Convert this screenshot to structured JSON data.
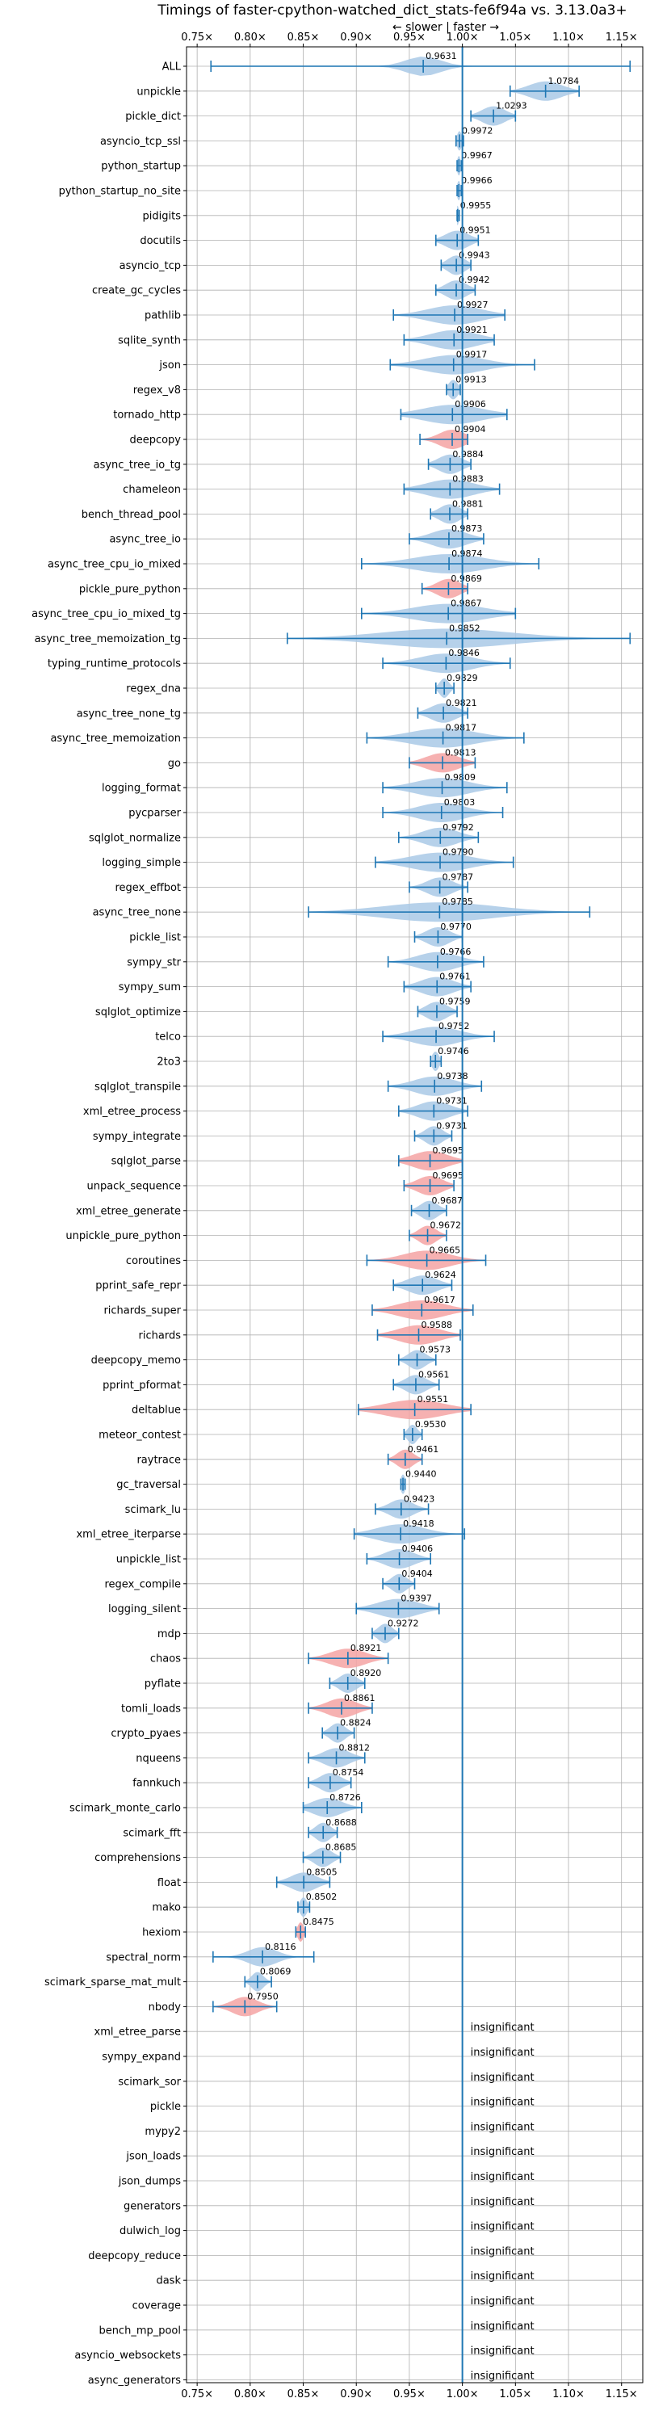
{
  "chart_data": {
    "type": "violin",
    "title": "Timings of faster-cpython-watched_dict_stats-fe6f94a vs. 3.13.0a3+",
    "direction_label": "← slower | faster →",
    "xlim": [
      0.74,
      1.17
    ],
    "xticks": [
      0.75,
      0.8,
      0.85,
      0.9,
      0.95,
      1.0,
      1.05,
      1.1,
      1.15
    ],
    "xtick_labels": [
      "0.75×",
      "0.80×",
      "0.85×",
      "0.90×",
      "0.95×",
      "1.00×",
      "1.05×",
      "1.10×",
      "1.15×"
    ],
    "reference_line": 1.0,
    "grid": true,
    "colors": {
      "faster": "#a9c9e6",
      "slower": "#f4a3a3",
      "line": "#1f77b4",
      "grid": "#b0b0b0"
    },
    "insignificant_label": "insignificant",
    "benchmarks": [
      {
        "name": "ALL",
        "value": 0.9631,
        "label": "0.9631",
        "min": 0.763,
        "max": 1.158,
        "spread": 0.03,
        "color": "faster"
      },
      {
        "name": "unpickle",
        "value": 1.0784,
        "label": "1.0784",
        "min": 1.045,
        "max": 1.11,
        "spread": 0.028,
        "color": "faster"
      },
      {
        "name": "pickle_dict",
        "value": 1.0293,
        "label": "1.0293",
        "min": 1.008,
        "max": 1.05,
        "spread": 0.02,
        "color": "faster"
      },
      {
        "name": "asyncio_tcp_ssl",
        "value": 0.9972,
        "label": "0.9972",
        "min": 0.994,
        "max": 1.001,
        "spread": 0.004,
        "color": "faster"
      },
      {
        "name": "python_startup",
        "value": 0.9967,
        "label": "0.9967",
        "min": 0.995,
        "max": 0.999,
        "spread": 0.003,
        "color": "faster"
      },
      {
        "name": "python_startup_no_site",
        "value": 0.9966,
        "label": "0.9966",
        "min": 0.995,
        "max": 0.999,
        "spread": 0.003,
        "color": "faster"
      },
      {
        "name": "pidigits",
        "value": 0.9955,
        "label": "0.9955",
        "min": 0.995,
        "max": 0.997,
        "spread": 0.002,
        "color": "faster"
      },
      {
        "name": "docutils",
        "value": 0.9951,
        "label": "0.9951",
        "min": 0.975,
        "max": 1.015,
        "spread": 0.02,
        "color": "faster"
      },
      {
        "name": "asyncio_tcp",
        "value": 0.9943,
        "label": "0.9943",
        "min": 0.98,
        "max": 1.008,
        "spread": 0.015,
        "color": "faster"
      },
      {
        "name": "create_gc_cycles",
        "value": 0.9942,
        "label": "0.9942",
        "min": 0.975,
        "max": 1.012,
        "spread": 0.018,
        "color": "faster"
      },
      {
        "name": "pathlib",
        "value": 0.9927,
        "label": "0.9927",
        "min": 0.935,
        "max": 1.04,
        "spread": 0.045,
        "color": "faster"
      },
      {
        "name": "sqlite_synth",
        "value": 0.9921,
        "label": "0.9921",
        "min": 0.945,
        "max": 1.03,
        "spread": 0.04,
        "color": "faster"
      },
      {
        "name": "json",
        "value": 0.9917,
        "label": "0.9917",
        "min": 0.932,
        "max": 1.068,
        "spread": 0.05,
        "color": "faster"
      },
      {
        "name": "regex_v8",
        "value": 0.9913,
        "label": "0.9913",
        "min": 0.985,
        "max": 0.998,
        "spread": 0.008,
        "color": "faster"
      },
      {
        "name": "tornado_http",
        "value": 0.9906,
        "label": "0.9906",
        "min": 0.942,
        "max": 1.042,
        "spread": 0.05,
        "color": "faster"
      },
      {
        "name": "deepcopy",
        "value": 0.9904,
        "label": "0.9904",
        "min": 0.96,
        "max": 1.005,
        "spread": 0.022,
        "color": "slower"
      },
      {
        "name": "async_tree_io_tg",
        "value": 0.9884,
        "label": "0.9884",
        "min": 0.968,
        "max": 1.008,
        "spread": 0.02,
        "color": "faster"
      },
      {
        "name": "chameleon",
        "value": 0.9883,
        "label": "0.9883",
        "min": 0.945,
        "max": 1.035,
        "spread": 0.04,
        "color": "faster"
      },
      {
        "name": "bench_thread_pool",
        "value": 0.9881,
        "label": "0.9881",
        "min": 0.97,
        "max": 1.005,
        "spread": 0.018,
        "color": "faster"
      },
      {
        "name": "async_tree_io",
        "value": 0.9873,
        "label": "0.9873",
        "min": 0.95,
        "max": 1.02,
        "spread": 0.03,
        "color": "faster"
      },
      {
        "name": "async_tree_cpu_io_mixed",
        "value": 0.9874,
        "label": "0.9874",
        "min": 0.905,
        "max": 1.072,
        "spread": 0.06,
        "color": "faster"
      },
      {
        "name": "pickle_pure_python",
        "value": 0.9869,
        "label": "0.9869",
        "min": 0.962,
        "max": 1.005,
        "spread": 0.02,
        "color": "slower"
      },
      {
        "name": "async_tree_cpu_io_mixed_tg",
        "value": 0.9867,
        "label": "0.9867",
        "min": 0.905,
        "max": 1.05,
        "spread": 0.06,
        "color": "faster"
      },
      {
        "name": "async_tree_memoization_tg",
        "value": 0.9852,
        "label": "0.9852",
        "min": 0.835,
        "max": 1.158,
        "spread": 0.11,
        "color": "faster"
      },
      {
        "name": "typing_runtime_protocols",
        "value": 0.9846,
        "label": "0.9846",
        "min": 0.925,
        "max": 1.045,
        "spread": 0.045,
        "color": "faster"
      },
      {
        "name": "regex_dna",
        "value": 0.9829,
        "label": "0.9829",
        "min": 0.975,
        "max": 0.992,
        "spread": 0.008,
        "color": "faster"
      },
      {
        "name": "async_tree_none_tg",
        "value": 0.9821,
        "label": "0.9821",
        "min": 0.958,
        "max": 1.005,
        "spread": 0.022,
        "color": "faster"
      },
      {
        "name": "async_tree_memoization",
        "value": 0.9817,
        "label": "0.9817",
        "min": 0.91,
        "max": 1.058,
        "spread": 0.055,
        "color": "faster"
      },
      {
        "name": "go",
        "value": 0.9813,
        "label": "0.9813",
        "min": 0.95,
        "max": 1.012,
        "spread": 0.028,
        "color": "slower"
      },
      {
        "name": "logging_format",
        "value": 0.9809,
        "label": "0.9809",
        "min": 0.925,
        "max": 1.042,
        "spread": 0.045,
        "color": "faster"
      },
      {
        "name": "pycparser",
        "value": 0.9803,
        "label": "0.9803",
        "min": 0.925,
        "max": 1.038,
        "spread": 0.04,
        "color": "faster"
      },
      {
        "name": "sqlglot_normalize",
        "value": 0.9792,
        "label": "0.9792",
        "min": 0.94,
        "max": 1.015,
        "spread": 0.03,
        "color": "faster"
      },
      {
        "name": "logging_simple",
        "value": 0.979,
        "label": "0.9790",
        "min": 0.918,
        "max": 1.048,
        "spread": 0.05,
        "color": "faster"
      },
      {
        "name": "regex_effbot",
        "value": 0.9787,
        "label": "0.9787",
        "min": 0.95,
        "max": 1.005,
        "spread": 0.022,
        "color": "faster"
      },
      {
        "name": "async_tree_none",
        "value": 0.9785,
        "label": "0.9785",
        "min": 0.855,
        "max": 1.12,
        "spread": 0.095,
        "color": "faster"
      },
      {
        "name": "pickle_list",
        "value": 0.977,
        "label": "0.9770",
        "min": 0.955,
        "max": 1.0,
        "spread": 0.02,
        "color": "faster"
      },
      {
        "name": "sympy_str",
        "value": 0.9766,
        "label": "0.9766",
        "min": 0.93,
        "max": 1.02,
        "spread": 0.035,
        "color": "faster"
      },
      {
        "name": "sympy_sum",
        "value": 0.9761,
        "label": "0.9761",
        "min": 0.945,
        "max": 1.008,
        "spread": 0.028,
        "color": "faster"
      },
      {
        "name": "sqlglot_optimize",
        "value": 0.9759,
        "label": "0.9759",
        "min": 0.958,
        "max": 0.995,
        "spread": 0.018,
        "color": "faster"
      },
      {
        "name": "telco",
        "value": 0.9752,
        "label": "0.9752",
        "min": 0.925,
        "max": 1.03,
        "spread": 0.04,
        "color": "faster"
      },
      {
        "name": "2to3",
        "value": 0.9746,
        "label": "0.9746",
        "min": 0.97,
        "max": 0.98,
        "spread": 0.006,
        "color": "faster"
      },
      {
        "name": "sqlglot_transpile",
        "value": 0.9738,
        "label": "0.9738",
        "min": 0.93,
        "max": 1.018,
        "spread": 0.035,
        "color": "faster"
      },
      {
        "name": "xml_etree_process",
        "value": 0.9731,
        "label": "0.9731",
        "min": 0.94,
        "max": 1.005,
        "spread": 0.028,
        "color": "faster"
      },
      {
        "name": "sympy_integrate",
        "value": 0.9731,
        "label": "0.9731",
        "min": 0.955,
        "max": 0.99,
        "spread": 0.015,
        "color": "faster"
      },
      {
        "name": "sqlglot_parse",
        "value": 0.9695,
        "label": "0.9695",
        "min": 0.94,
        "max": 1.0,
        "spread": 0.03,
        "color": "slower"
      },
      {
        "name": "unpack_sequence",
        "value": 0.9695,
        "label": "0.9695",
        "min": 0.945,
        "max": 0.992,
        "spread": 0.022,
        "color": "slower"
      },
      {
        "name": "xml_etree_generate",
        "value": 0.9687,
        "label": "0.9687",
        "min": 0.952,
        "max": 0.985,
        "spread": 0.015,
        "color": "faster"
      },
      {
        "name": "unpickle_pure_python",
        "value": 0.9672,
        "label": "0.9672",
        "min": 0.95,
        "max": 0.985,
        "spread": 0.015,
        "color": "slower"
      },
      {
        "name": "coroutines",
        "value": 0.9665,
        "label": "0.9665",
        "min": 0.91,
        "max": 1.022,
        "spread": 0.04,
        "color": "slower"
      },
      {
        "name": "pprint_safe_repr",
        "value": 0.9624,
        "label": "0.9624",
        "min": 0.935,
        "max": 0.99,
        "spread": 0.025,
        "color": "faster"
      },
      {
        "name": "richards_super",
        "value": 0.9617,
        "label": "0.9617",
        "min": 0.915,
        "max": 1.01,
        "spread": 0.04,
        "color": "slower"
      },
      {
        "name": "richards",
        "value": 0.9588,
        "label": "0.9588",
        "min": 0.92,
        "max": 0.998,
        "spread": 0.035,
        "color": "slower"
      },
      {
        "name": "deepcopy_memo",
        "value": 0.9573,
        "label": "0.9573",
        "min": 0.94,
        "max": 0.975,
        "spread": 0.015,
        "color": "faster"
      },
      {
        "name": "pprint_pformat",
        "value": 0.9561,
        "label": "0.9561",
        "min": 0.935,
        "max": 0.978,
        "spread": 0.018,
        "color": "faster"
      },
      {
        "name": "deltablue",
        "value": 0.9551,
        "label": "0.9551",
        "min": 0.902,
        "max": 1.008,
        "spread": 0.05,
        "color": "slower"
      },
      {
        "name": "meteor_contest",
        "value": 0.953,
        "label": "0.9530",
        "min": 0.945,
        "max": 0.962,
        "spread": 0.008,
        "color": "faster"
      },
      {
        "name": "raytrace",
        "value": 0.9461,
        "label": "0.9461",
        "min": 0.93,
        "max": 0.962,
        "spread": 0.014,
        "color": "slower"
      },
      {
        "name": "gc_traversal",
        "value": 0.944,
        "label": "0.9440",
        "min": 0.942,
        "max": 0.946,
        "spread": 0.004,
        "color": "faster"
      },
      {
        "name": "scimark_lu",
        "value": 0.9423,
        "label": "0.9423",
        "min": 0.918,
        "max": 0.968,
        "spread": 0.02,
        "color": "faster"
      },
      {
        "name": "xml_etree_iterparse",
        "value": 0.9418,
        "label": "0.9418",
        "min": 0.898,
        "max": 1.002,
        "spread": 0.04,
        "color": "faster"
      },
      {
        "name": "unpickle_list",
        "value": 0.9406,
        "label": "0.9406",
        "min": 0.91,
        "max": 0.97,
        "spread": 0.025,
        "color": "faster"
      },
      {
        "name": "regex_compile",
        "value": 0.9404,
        "label": "0.9404",
        "min": 0.925,
        "max": 0.955,
        "spread": 0.013,
        "color": "faster"
      },
      {
        "name": "logging_silent",
        "value": 0.9397,
        "label": "0.9397",
        "min": 0.9,
        "max": 0.978,
        "spread": 0.035,
        "color": "faster"
      },
      {
        "name": "mdp",
        "value": 0.9272,
        "label": "0.9272",
        "min": 0.915,
        "max": 0.94,
        "spread": 0.012,
        "color": "faster"
      },
      {
        "name": "chaos",
        "value": 0.8921,
        "label": "0.8921",
        "min": 0.855,
        "max": 0.93,
        "spread": 0.03,
        "color": "slower"
      },
      {
        "name": "pyflate",
        "value": 0.892,
        "label": "0.8920",
        "min": 0.875,
        "max": 0.908,
        "spread": 0.015,
        "color": "faster"
      },
      {
        "name": "tomli_loads",
        "value": 0.8861,
        "label": "0.8861",
        "min": 0.855,
        "max": 0.915,
        "spread": 0.025,
        "color": "slower"
      },
      {
        "name": "crypto_pyaes",
        "value": 0.8824,
        "label": "0.8824",
        "min": 0.868,
        "max": 0.898,
        "spread": 0.013,
        "color": "faster"
      },
      {
        "name": "nqueens",
        "value": 0.8812,
        "label": "0.8812",
        "min": 0.855,
        "max": 0.908,
        "spread": 0.022,
        "color": "faster"
      },
      {
        "name": "fannkuch",
        "value": 0.8754,
        "label": "0.8754",
        "min": 0.855,
        "max": 0.895,
        "spread": 0.018,
        "color": "faster"
      },
      {
        "name": "scimark_monte_carlo",
        "value": 0.8726,
        "label": "0.8726",
        "min": 0.85,
        "max": 0.905,
        "spread": 0.025,
        "color": "faster"
      },
      {
        "name": "scimark_fft",
        "value": 0.8688,
        "label": "0.8688",
        "min": 0.855,
        "max": 0.882,
        "spread": 0.013,
        "color": "faster"
      },
      {
        "name": "comprehensions",
        "value": 0.8685,
        "label": "0.8685",
        "min": 0.85,
        "max": 0.885,
        "spread": 0.015,
        "color": "faster"
      },
      {
        "name": "float",
        "value": 0.8505,
        "label": "0.8505",
        "min": 0.825,
        "max": 0.875,
        "spread": 0.022,
        "color": "faster"
      },
      {
        "name": "mako",
        "value": 0.8502,
        "label": "0.8502",
        "min": 0.845,
        "max": 0.856,
        "spread": 0.006,
        "color": "faster"
      },
      {
        "name": "hexiom",
        "value": 0.8475,
        "label": "0.8475",
        "min": 0.843,
        "max": 0.852,
        "spread": 0.005,
        "color": "slower"
      },
      {
        "name": "spectral_norm",
        "value": 0.8116,
        "label": "0.8116",
        "min": 0.765,
        "max": 0.86,
        "spread": 0.025,
        "color": "faster"
      },
      {
        "name": "scimark_sparse_mat_mult",
        "value": 0.8069,
        "label": "0.8069",
        "min": 0.795,
        "max": 0.82,
        "spread": 0.01,
        "color": "faster"
      },
      {
        "name": "nbody",
        "value": 0.795,
        "label": "0.7950",
        "min": 0.765,
        "max": 0.825,
        "spread": 0.022,
        "color": "slower"
      },
      {
        "name": "xml_etree_parse",
        "insignificant": true
      },
      {
        "name": "sympy_expand",
        "insignificant": true
      },
      {
        "name": "scimark_sor",
        "insignificant": true
      },
      {
        "name": "pickle",
        "insignificant": true
      },
      {
        "name": "mypy2",
        "insignificant": true
      },
      {
        "name": "json_loads",
        "insignificant": true
      },
      {
        "name": "json_dumps",
        "insignificant": true
      },
      {
        "name": "generators",
        "insignificant": true
      },
      {
        "name": "dulwich_log",
        "insignificant": true
      },
      {
        "name": "deepcopy_reduce",
        "insignificant": true
      },
      {
        "name": "dask",
        "insignificant": true
      },
      {
        "name": "coverage",
        "insignificant": true
      },
      {
        "name": "bench_mp_pool",
        "insignificant": true
      },
      {
        "name": "asyncio_websockets",
        "insignificant": true
      },
      {
        "name": "async_generators",
        "insignificant": true
      }
    ]
  }
}
